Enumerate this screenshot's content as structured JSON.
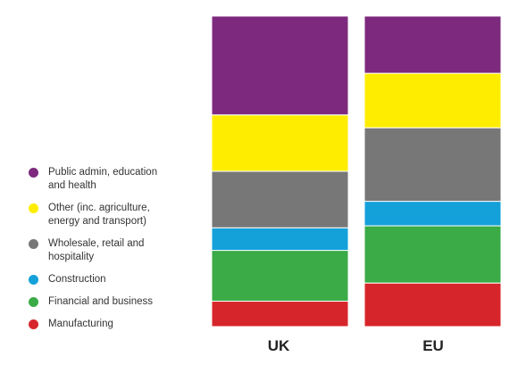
{
  "chart_data": {
    "type": "bar",
    "stacked": true,
    "normalized": true,
    "categories": [
      "UK",
      "EU"
    ],
    "series": [
      {
        "name": "Manufacturing",
        "color": "#d7262b",
        "values": [
          9,
          16
        ]
      },
      {
        "name": "Financial and business",
        "color": "#3aab47",
        "values": [
          18,
          21
        ]
      },
      {
        "name": "Construction",
        "color": "#14a1da",
        "values": [
          8,
          9
        ]
      },
      {
        "name": "Wholesale, retail and hospitality",
        "color": "#777777",
        "values": [
          20,
          27
        ]
      },
      {
        "name": "Other (inc. agriculture, energy and transport)",
        "color": "#ffed00",
        "values": [
          20,
          20
        ]
      },
      {
        "name": "Public admin, education and health",
        "color": "#7d2a7e",
        "values": [
          35,
          21
        ]
      }
    ],
    "legend_order": [
      "Public admin, education\nand health",
      "Other (inc. agriculture,\nenergy and transport)",
      "Wholesale, retail and\nhospitality",
      "Construction",
      "Financial and business",
      "Manufacturing"
    ],
    "legend_colors": [
      "#7d2a7e",
      "#ffed00",
      "#777777",
      "#14a1da",
      "#3aab47",
      "#d7262b"
    ],
    "legend_placement": "left",
    "grid": false
  }
}
